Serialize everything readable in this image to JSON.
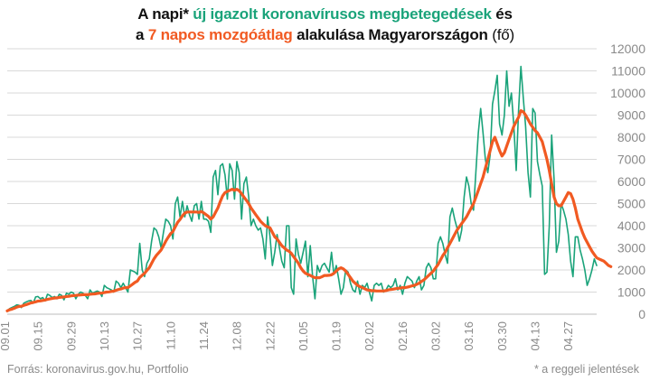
{
  "title": {
    "line1": [
      "A napi* ",
      "új igazolt koronavírusos megbetegedések",
      " és"
    ],
    "line2": [
      "a ",
      "7 napos mozgóátlag",
      " alakulása Magyarországon",
      " (fő)"
    ]
  },
  "footer": {
    "source": "Forrás: koronavirus.gov.hu, Portfolio",
    "note": "* a reggeli jelentések"
  },
  "colors": {
    "daily": "#1aa37a",
    "avg": "#f15a22",
    "grid": "#d9d9d9",
    "tick": "#8a8a8a"
  },
  "chart_data": {
    "type": "line",
    "title": "A napi* új igazolt koronavírusos megbetegedések és a 7 napos mozgóátlag alakulása Magyarországon (fő)",
    "ylim": [
      0,
      12000
    ],
    "y_ticks": [
      "0",
      "1000",
      "2000",
      "3000",
      "4000",
      "5000",
      "6000",
      "7000",
      "8000",
      "9000",
      "10000",
      "11000",
      "12000"
    ],
    "x_tick_labels": [
      "09.01",
      "09.15",
      "09.29",
      "10.13",
      "10.27",
      "11.10",
      "11.24",
      "12.08",
      "12.22",
      "01.05",
      "01.19",
      "02.02",
      "02.16",
      "03.02",
      "03.16",
      "03.30",
      "04.13",
      "04.27"
    ],
    "x_tick_interval_days": 14,
    "x_start": "2020-09-01",
    "grid": "horizontal",
    "series": [
      {
        "key": "daily",
        "values": [
          150,
          250,
          300,
          350,
          420,
          400,
          300,
          500,
          550,
          600,
          620,
          500,
          780,
          800,
          700,
          750,
          600,
          900,
          850,
          750,
          800,
          700,
          900,
          850,
          650,
          950,
          900,
          1000,
          950,
          700,
          900,
          1000,
          950,
          850,
          700,
          1100,
          950,
          1000,
          1050,
          1000,
          800,
          1300,
          1200,
          1150,
          1100,
          1000,
          1500,
          1400,
          1200,
          1400,
          1200,
          1000,
          2000,
          1950,
          1900,
          1800,
          3200,
          2000,
          1700,
          2300,
          2500,
          3300,
          3900,
          3800,
          3500,
          3000,
          3700,
          4300,
          4200,
          4000,
          3400,
          5000,
          5300,
          4400,
          5100,
          4400,
          4900,
          4500,
          4200,
          4900,
          5000,
          4300,
          5100,
          4300,
          4300,
          4200,
          3700,
          6200,
          6500,
          5400,
          6700,
          6800,
          6300,
          5200,
          6800,
          6500,
          5200,
          6900,
          6400,
          4300,
          5900,
          6200,
          5300,
          4000,
          4300,
          4000,
          3800,
          3900,
          3400,
          2500,
          4400,
          3500,
          2200,
          2800,
          3600,
          3000,
          2400,
          2100,
          4000,
          4000,
          1200,
          900,
          3400,
          2700,
          2300,
          2800,
          3300,
          1700,
          3100,
          1700,
          700,
          2200,
          1900,
          2200,
          2300,
          2100,
          1900,
          2800,
          1800,
          2200,
          1600,
          900,
          1200,
          2000,
          1900,
          1400,
          1100,
          1000,
          1500,
          900,
          1300,
          1200,
          1400,
          1000,
          600,
          1300,
          1400,
          1300,
          1400,
          1000,
          1100,
          1300,
          1200,
          1300,
          1600,
          1100,
          1300,
          900,
          1400,
          1700,
          1600,
          1500,
          1200,
          1500,
          1700,
          1100,
          1300,
          2100,
          2300,
          2100,
          1600,
          1600,
          3200,
          3500,
          3200,
          2700,
          2300,
          4400,
          4800,
          4300,
          3900,
          3300,
          3800,
          5300,
          6200,
          5800,
          5000,
          4700,
          6500,
          8200,
          9300,
          8200,
          7000,
          6400,
          7200,
          9500,
          10100,
          10800,
          8600,
          8100,
          9000,
          11000,
          9400,
          10000,
          8500,
          6500,
          9200,
          11200,
          9800,
          8500,
          6400,
          5300,
          9300,
          9100,
          6900,
          6300,
          5800,
          1800,
          1900,
          4000,
          8100,
          6100,
          2800,
          3300,
          5000,
          4700,
          4300,
          3600,
          2400,
          1700,
          3500,
          3500,
          2900,
          2500,
          2000,
          1300,
          1600,
          2000,
          2500,
          2200
        ],
        "color": "#1aa37a"
      },
      {
        "key": "avg",
        "values": [
          150,
          200,
          230,
          270,
          320,
          350,
          360,
          400,
          430,
          470,
          510,
          530,
          560,
          590,
          600,
          620,
          640,
          670,
          690,
          710,
          730,
          740,
          760,
          770,
          780,
          800,
          810,
          830,
          840,
          850,
          860,
          870,
          880,
          880,
          880,
          900,
          910,
          920,
          940,
          950,
          950,
          980,
          1000,
          1010,
          1030,
          1040,
          1080,
          1120,
          1140,
          1180,
          1200,
          1200,
          1280,
          1360,
          1440,
          1500,
          1660,
          1760,
          1850,
          1980,
          2100,
          2300,
          2500,
          2660,
          2780,
          2900,
          3100,
          3300,
          3480,
          3640,
          3740,
          3950,
          4150,
          4280,
          4450,
          4570,
          4620,
          4620,
          4620,
          4620,
          4620,
          4600,
          4640,
          4580,
          4500,
          4420,
          4300,
          4400,
          4600,
          4800,
          5100,
          5350,
          5500,
          5550,
          5600,
          5650,
          5600,
          5650,
          5580,
          5450,
          5300,
          5150,
          5000,
          4800,
          4650,
          4500,
          4350,
          4200,
          4100,
          4000,
          3950,
          3900,
          3700,
          3500,
          3400,
          3250,
          3100,
          3000,
          2900,
          2850,
          2750,
          2600,
          2450,
          2300,
          2100,
          1950,
          1850,
          1800,
          1750,
          1700,
          1650,
          1650,
          1650,
          1700,
          1750,
          1750,
          1760,
          1780,
          1850,
          1950,
          2050,
          2100,
          2050,
          1950,
          1800,
          1650,
          1500,
          1400,
          1300,
          1250,
          1200,
          1150,
          1100,
          1080,
          1060,
          1060,
          1050,
          1050,
          1050,
          1050,
          1070,
          1100,
          1120,
          1130,
          1150,
          1170,
          1180,
          1200,
          1200,
          1220,
          1250,
          1280,
          1300,
          1350,
          1400,
          1480,
          1550,
          1650,
          1750,
          1850,
          1950,
          2100,
          2250,
          2450,
          2650,
          2800,
          3000,
          3200,
          3400,
          3600,
          3800,
          3950,
          4100,
          4250,
          4400,
          4600,
          4800,
          5000,
          5300,
          5600,
          5900,
          6200,
          6600,
          7000,
          7400,
          7800,
          8000,
          7700,
          7400,
          7150,
          7300,
          7600,
          7900,
          8200,
          8500,
          8700,
          8900,
          9200,
          9150,
          9000,
          8800,
          8600,
          8450,
          8300,
          8200,
          8000,
          7800,
          7400,
          7000,
          6500,
          5900,
          5300,
          5000,
          4900,
          4900,
          5100,
          5300,
          5500,
          5450,
          5200,
          4800,
          4300,
          4000,
          3700,
          3450,
          3250,
          3050,
          2850,
          2700,
          2550,
          2500,
          2450,
          2400,
          2300,
          2200,
          2150
        ]
      }
    ]
  }
}
